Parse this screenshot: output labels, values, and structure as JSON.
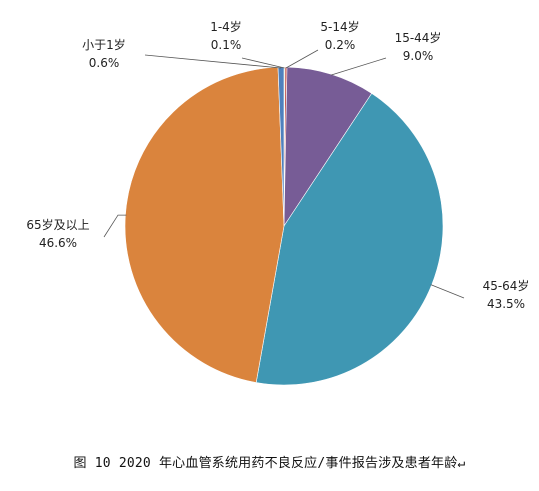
{
  "caption": "图 10  2020 年心血管系统用药不良反应/事件报告涉及患者年龄↵",
  "chart_data": {
    "type": "pie",
    "categories": [
      "小于1岁",
      "1-4岁",
      "5-14岁",
      "15-44岁",
      "45-64岁",
      "65岁及以上"
    ],
    "values": [
      0.6,
      0.1,
      0.2,
      9.0,
      43.5,
      46.6
    ],
    "value_labels": [
      "0.6%",
      "0.1%",
      "0.2%",
      "9.0%",
      "43.5%",
      "46.6%"
    ],
    "colors": [
      "#4f81bd",
      "#9bbb59",
      "#c0504d",
      "#775c96",
      "#3f97b3",
      "#da843d"
    ],
    "start_angle_deg": 0,
    "direction": "clockwise"
  }
}
